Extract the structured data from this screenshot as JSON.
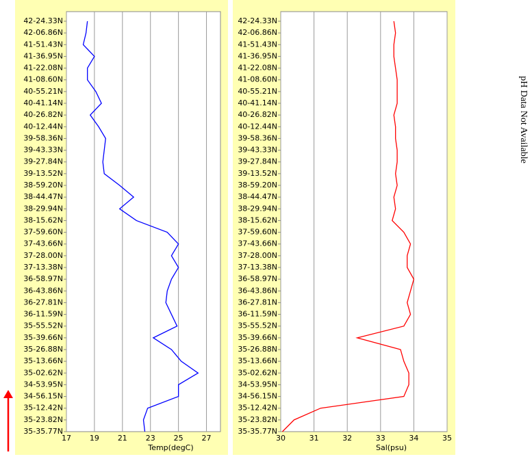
{
  "chart_data": [
    {
      "type": "line",
      "xlabel": "Temp(degC)",
      "color": "#0000ff",
      "xlim": [
        17,
        28
      ],
      "xticks": [
        17,
        19,
        21,
        23,
        25,
        27
      ],
      "grid": true,
      "categories": [
        "42-24.33N",
        "42-06.86N",
        "41-51.43N",
        "41-36.95N",
        "41-22.08N",
        "41-08.60N",
        "40-55.21N",
        "40-41.14N",
        "40-26.82N",
        "40-12.44N",
        "39-58.36N",
        "39-43.33N",
        "39-27.84N",
        "39-13.52N",
        "38-59.20N",
        "38-44.47N",
        "38-29.94N",
        "38-15.62N",
        "37-59.60N",
        "37-43.66N",
        "37-28.00N",
        "37-13.38N",
        "36-58.97N",
        "36-43.86N",
        "36-27.81N",
        "36-11.59N",
        "35-55.52N",
        "35-39.66N",
        "35-26.88N",
        "35-13.66N",
        "35-02.62N",
        "34-53.95N",
        "34-56.15N",
        "35-12.42N",
        "35-23.82N",
        "35-35.77N"
      ],
      "values": [
        18.5,
        18.4,
        18.2,
        19.0,
        18.5,
        18.5,
        19.1,
        19.5,
        18.7,
        19.3,
        19.8,
        19.7,
        19.6,
        19.7,
        20.8,
        21.8,
        20.8,
        22.0,
        24.2,
        25.0,
        24.5,
        25.0,
        24.5,
        24.2,
        24.1,
        24.5,
        24.9,
        23.2,
        24.5,
        25.2,
        26.4,
        25.0,
        25.0,
        22.8,
        22.5,
        22.6
      ]
    },
    {
      "type": "line",
      "xlabel": "Sal(psu)",
      "color": "#ff0000",
      "xlim": [
        30,
        35
      ],
      "xticks": [
        30,
        31,
        32,
        33,
        34,
        35
      ],
      "grid": true,
      "categories": [
        "42-24.33N",
        "42-06.86N",
        "41-51.43N",
        "41-36.95N",
        "41-22.08N",
        "41-08.60N",
        "40-55.21N",
        "40-41.14N",
        "40-26.82N",
        "40-12.44N",
        "39-58.36N",
        "39-43.33N",
        "39-27.84N",
        "39-13.52N",
        "38-59.20N",
        "38-44.47N",
        "38-29.94N",
        "38-15.62N",
        "37-59.60N",
        "37-43.66N",
        "37-28.00N",
        "37-13.38N",
        "36-58.97N",
        "36-43.86N",
        "36-27.81N",
        "36-11.59N",
        "35-55.52N",
        "35-39.66N",
        "35-26.88N",
        "35-13.66N",
        "35-02.62N",
        "34-53.95N",
        "34-56.15N",
        "35-12.42N",
        "35-23.82N",
        "35-35.77N"
      ],
      "values": [
        33.4,
        33.45,
        33.4,
        33.4,
        33.45,
        33.5,
        33.5,
        33.5,
        33.4,
        33.45,
        33.45,
        33.5,
        33.5,
        33.45,
        33.5,
        33.4,
        33.45,
        33.35,
        33.7,
        33.9,
        33.8,
        33.8,
        34.0,
        33.9,
        33.8,
        33.9,
        33.7,
        32.3,
        33.6,
        33.7,
        33.85,
        33.85,
        33.7,
        31.2,
        30.4,
        30.05
      ]
    }
  ],
  "annotation": "pH Data Not Available"
}
